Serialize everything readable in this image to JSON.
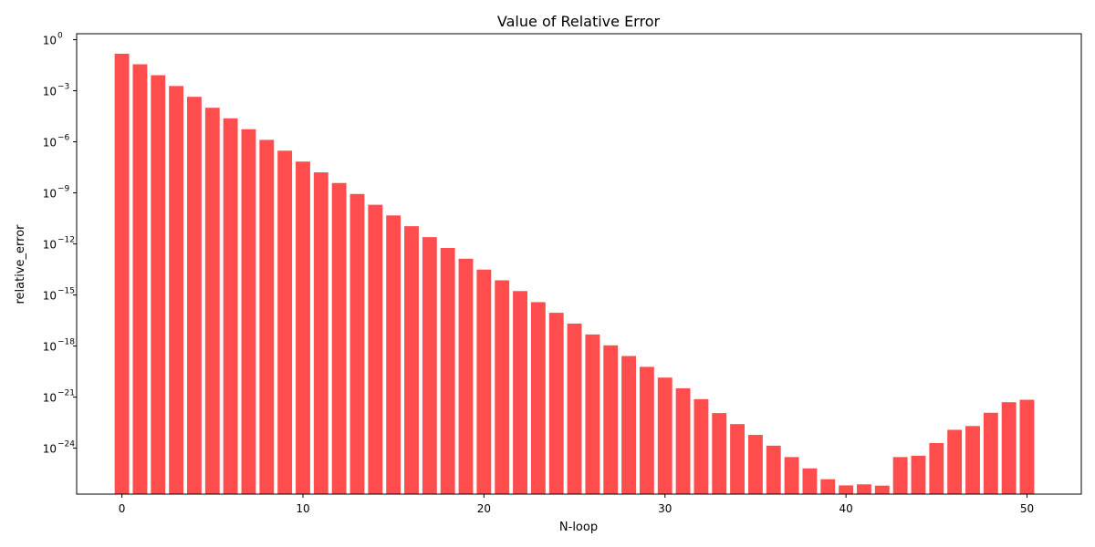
{
  "chart_data": {
    "type": "bar",
    "title": "Value of Relative Error",
    "xlabel": "N-loop",
    "ylabel": "relative_error",
    "yscale": "log",
    "bar_color": "#ff4d4d",
    "xlim": [
      -2.5,
      53
    ],
    "ylim_exp": [
      -26.7,
      0.35
    ],
    "xticks": [
      0,
      10,
      20,
      30,
      40,
      50
    ],
    "yticks": [
      {
        "exp": 0,
        "label": "0"
      },
      {
        "exp": -3,
        "label": "−3"
      },
      {
        "exp": -6,
        "label": "−6"
      },
      {
        "exp": -9,
        "label": "−9"
      },
      {
        "exp": -12,
        "label": "−12"
      },
      {
        "exp": -15,
        "label": "−15"
      },
      {
        "exp": -18,
        "label": "−18"
      },
      {
        "exp": -21,
        "label": "−21"
      },
      {
        "exp": -24,
        "label": "−24"
      }
    ],
    "x": [
      0,
      1,
      2,
      3,
      4,
      5,
      6,
      7,
      8,
      9,
      10,
      11,
      12,
      13,
      14,
      15,
      16,
      17,
      18,
      19,
      20,
      21,
      22,
      23,
      24,
      25,
      26,
      27,
      27,
      28,
      29,
      30,
      31,
      32,
      33,
      34,
      35,
      36,
      37,
      38,
      39,
      40,
      41,
      42,
      43,
      44,
      45,
      46,
      47,
      48,
      49,
      50
    ],
    "values": [
      0.15,
      0.036,
      0.0082,
      0.0019,
      0.00044,
      0.0001,
      2.4e-05,
      5.5e-06,
      1.3e-06,
      3e-07,
      6.9e-08,
      1.6e-08,
      3.8e-09,
      8.6e-10,
      2e-10,
      4.7e-11,
      1.1e-11,
      2.5e-12,
      5.8e-13,
      1.35e-13,
      3.1e-14,
      7.3e-15,
      1.7e-15,
      3.8e-16,
      9e-17,
      2.1e-17,
      4.8e-18,
      1.1e-18,
      1.1e-18,
      2.6e-19,
      6e-20,
      1.4e-20,
      3.3e-21,
      7.6e-22,
      1.15e-22,
      2.6e-23,
      6e-24,
      1.4e-24,
      3e-25,
      6.5e-26,
      1.5e-26,
      6.5e-27,
      7.5e-27,
      6.3e-27,
      3e-25,
      3.6e-25,
      2e-24,
      1.2e-23,
      2e-23,
      1.2e-22,
      5e-22,
      7e-22
    ]
  }
}
